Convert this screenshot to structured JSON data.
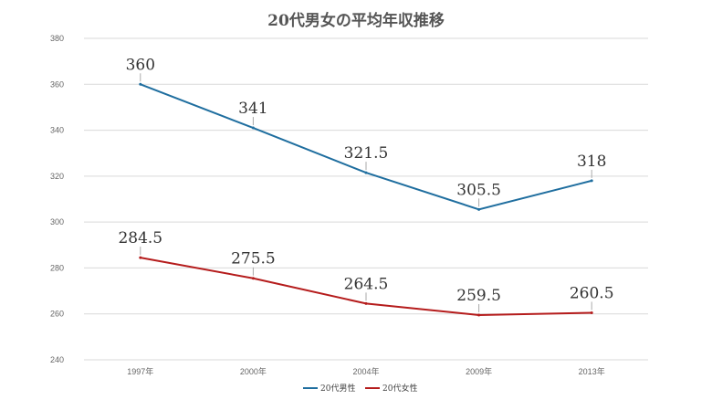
{
  "chart_data": {
    "type": "line",
    "title": "20代男女の平均年収推移",
    "categories": [
      "1997年",
      "2000年",
      "2004年",
      "2009年",
      "2013年"
    ],
    "series": [
      {
        "name": "20代男性",
        "color": "#1f6e9f",
        "values": [
          360,
          341,
          321.5,
          305.5,
          318
        ],
        "labels": [
          "360",
          "341",
          "321.5",
          "305.5",
          "318"
        ]
      },
      {
        "name": "20代女性",
        "color": "#b51c1c",
        "values": [
          284.5,
          275.5,
          264.5,
          259.5,
          260.5
        ],
        "labels": [
          "284.5",
          "275.5",
          "264.5",
          "259.5",
          "260.5"
        ]
      }
    ],
    "ylim": [
      240,
      380
    ],
    "yticks": [
      240,
      260,
      280,
      300,
      320,
      340,
      360,
      380
    ],
    "ytick_labels": [
      "240",
      "260",
      "280",
      "300",
      "320",
      "340",
      "360",
      "380"
    ],
    "grid": true,
    "legend": "bottom"
  }
}
